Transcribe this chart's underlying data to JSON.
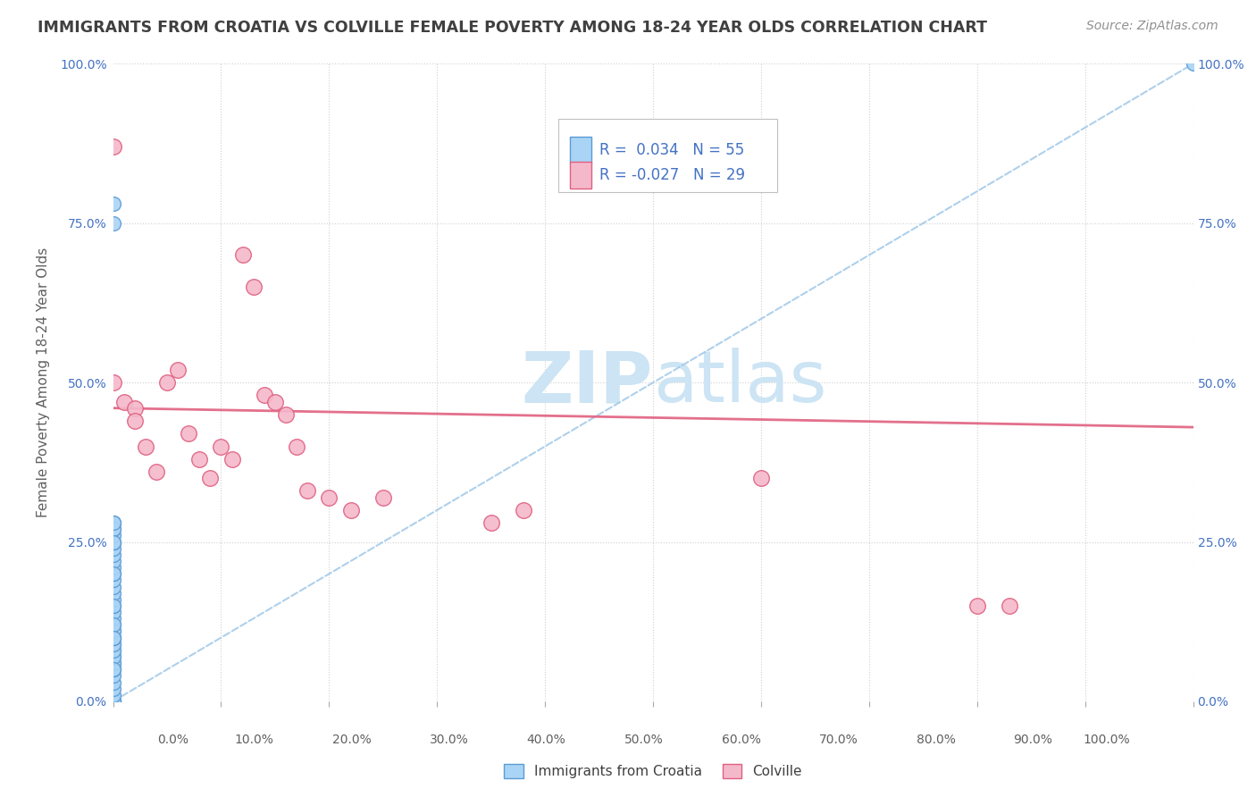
{
  "title": "IMMIGRANTS FROM CROATIA VS COLVILLE FEMALE POVERTY AMONG 18-24 YEAR OLDS CORRELATION CHART",
  "source": "Source: ZipAtlas.com",
  "ylabel": "Female Poverty Among 18-24 Year Olds",
  "legend_labels": [
    "Immigrants from Croatia",
    "Colville"
  ],
  "r_blue": 0.034,
  "n_blue": 55,
  "r_pink": -0.027,
  "n_pink": 29,
  "blue_color": "#aad4f5",
  "blue_edge_color": "#5b9bd5",
  "pink_color": "#f4b8cb",
  "pink_edge_color": "#e06080",
  "trendline_blue_color": "#a0c8e8",
  "trendline_pink_color": "#e06080",
  "watermark_color": "#cce4f4",
  "grid_color": "#d0d0d0",
  "title_color": "#404040",
  "label_color": "#606060",
  "source_color": "#909090",
  "stat_color": "#4472c4",
  "blue_scatter_x": [
    0,
    0,
    0,
    0,
    0,
    0,
    0,
    0,
    0,
    0,
    0,
    0,
    0,
    0,
    0,
    0,
    0,
    0,
    0,
    0,
    0,
    0,
    0,
    0,
    0,
    0,
    0,
    0,
    0,
    0,
    0,
    0,
    0,
    0,
    0,
    0,
    0,
    0,
    0,
    0,
    0,
    0,
    0,
    0,
    0,
    0,
    0,
    0,
    0,
    0,
    0,
    0,
    0,
    0,
    100
  ],
  "blue_scatter_y": [
    0,
    0,
    0,
    0,
    0,
    0,
    0,
    1,
    2,
    3,
    4,
    5,
    6,
    7,
    8,
    9,
    10,
    11,
    12,
    13,
    14,
    15,
    16,
    17,
    18,
    19,
    20,
    21,
    22,
    23,
    24,
    25,
    25,
    26,
    27,
    28,
    5,
    6,
    7,
    8,
    9,
    10,
    10,
    11,
    12,
    27,
    28,
    25,
    20,
    15,
    10,
    5,
    75,
    78,
    100
  ],
  "pink_scatter_x": [
    0,
    0,
    1,
    2,
    2,
    3,
    4,
    5,
    6,
    7,
    8,
    9,
    10,
    11,
    12,
    13,
    14,
    15,
    16,
    17,
    18,
    20,
    22,
    25,
    35,
    38,
    60,
    80,
    83
  ],
  "pink_scatter_y": [
    87,
    50,
    47,
    46,
    44,
    40,
    36,
    50,
    52,
    42,
    38,
    35,
    40,
    38,
    70,
    65,
    48,
    47,
    45,
    40,
    33,
    32,
    30,
    32,
    28,
    30,
    35,
    15,
    15
  ]
}
